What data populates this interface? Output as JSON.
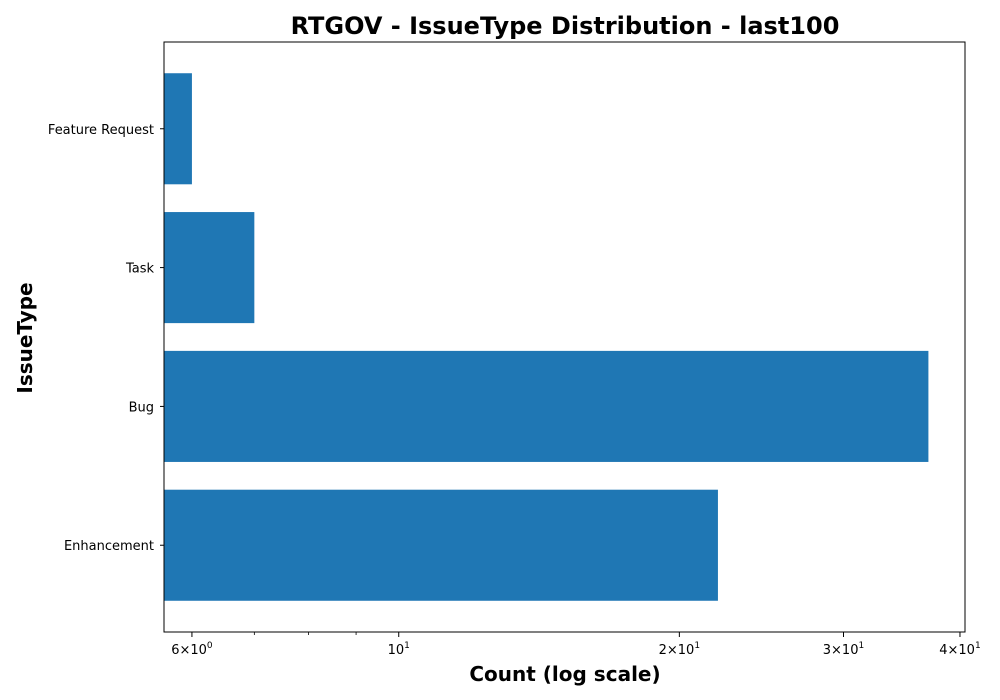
{
  "chart_data": {
    "type": "bar",
    "orientation": "horizontal",
    "title": "RTGOV - IssueType Distribution - last100",
    "xlabel": "Count (log scale)",
    "ylabel": "IssueType",
    "x_scale": "log",
    "xlim": [
      5.6,
      40.5
    ],
    "categories": [
      "Enhancement",
      "Bug",
      "Task",
      "Feature Request"
    ],
    "values": [
      22,
      37,
      7,
      6
    ],
    "x_ticks": [
      {
        "value": 6,
        "base": "6×10",
        "exp": "0"
      },
      {
        "value": 10,
        "base": "10",
        "exp": "1"
      },
      {
        "value": 20,
        "base": "2×10",
        "exp": "1"
      },
      {
        "value": 30,
        "base": "3×10",
        "exp": "1"
      },
      {
        "value": 40,
        "base": "4×10",
        "exp": "1"
      }
    ],
    "x_minor_ticks": [
      7,
      8,
      9
    ],
    "bar_color": "#1f77b4",
    "grid": false,
    "legend": "none"
  }
}
